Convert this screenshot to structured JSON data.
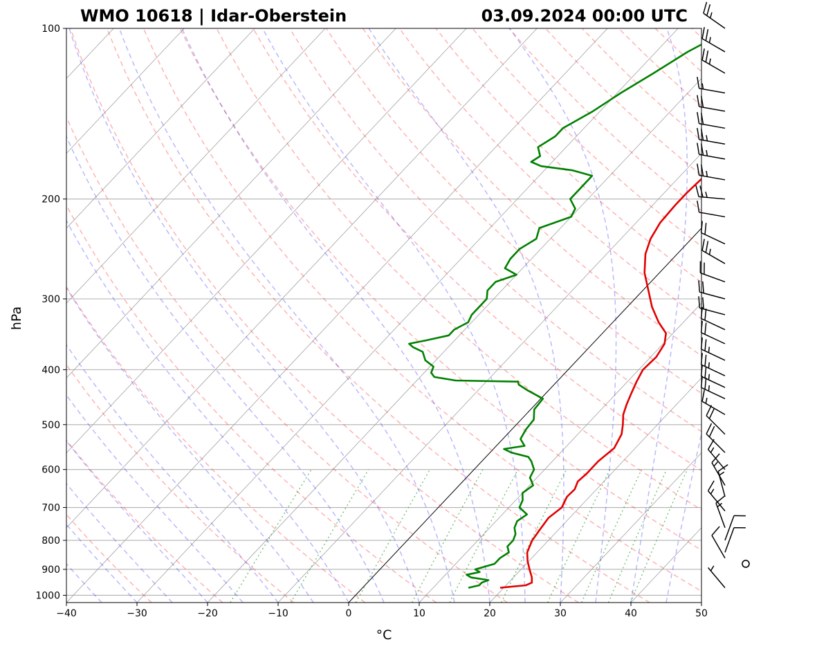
{
  "chart_data": {
    "type": "line",
    "title_left": "WMO 10618 | Idar-Oberstein",
    "title_right": "03.09.2024 00:00 UTC",
    "xlabel": "°C",
    "ylabel": "hPa",
    "xlim": [
      -40,
      50
    ],
    "ylim": [
      1030,
      100
    ],
    "x_ticks": [
      -40,
      -30,
      -20,
      -10,
      0,
      10,
      20,
      30,
      40,
      50
    ],
    "x_tick_labels": [
      "−40",
      "−30",
      "−20",
      "−10",
      "0",
      "10",
      "20",
      "30",
      "40",
      "50"
    ],
    "y_ticks": [
      1000,
      900,
      800,
      700,
      600,
      500,
      400,
      300,
      200,
      100
    ],
    "y_tick_labels": [
      "1000",
      "900",
      "800",
      "700",
      "600",
      "500",
      "400",
      "300",
      "200",
      "100"
    ],
    "isotherm_highlight": 0,
    "series": [
      {
        "name": "Temperature",
        "color": "#e00000",
        "points": [
          [
            970,
            19.5
          ],
          [
            960,
            22.8
          ],
          [
            950,
            23.3
          ],
          [
            930,
            22.6
          ],
          [
            900,
            21.2
          ],
          [
            870,
            19.8
          ],
          [
            840,
            18.6
          ],
          [
            800,
            17.7
          ],
          [
            760,
            17.3
          ],
          [
            730,
            17.0
          ],
          [
            700,
            17.5
          ],
          [
            670,
            16.8
          ],
          [
            650,
            16.9
          ],
          [
            630,
            16.3
          ],
          [
            610,
            16.5
          ],
          [
            580,
            16.5
          ],
          [
            550,
            17.0
          ],
          [
            520,
            16.2
          ],
          [
            500,
            15.1
          ],
          [
            480,
            13.8
          ],
          [
            460,
            12.9
          ],
          [
            440,
            12.1
          ],
          [
            420,
            11.3
          ],
          [
            400,
            10.6
          ],
          [
            380,
            10.8
          ],
          [
            360,
            10.2
          ],
          [
            345,
            9.0
          ],
          [
            330,
            6.5
          ],
          [
            310,
            3.5
          ],
          [
            290,
            0.8
          ],
          [
            270,
            -2.1
          ],
          [
            250,
            -4.5
          ],
          [
            235,
            -5.8
          ],
          [
            220,
            -6.6
          ],
          [
            205,
            -6.8
          ],
          [
            195,
            -6.8
          ],
          [
            185,
            -6.6
          ],
          [
            178,
            -6.0
          ],
          [
            174,
            -4.5
          ],
          [
            170,
            -3.0
          ],
          [
            165,
            -1.5
          ],
          [
            160,
            0.0
          ],
          [
            155,
            2.5
          ],
          [
            150,
            4.5
          ],
          [
            145,
            5.5
          ],
          [
            140,
            7.0
          ],
          [
            135,
            9.0
          ],
          [
            130,
            11.5
          ],
          [
            125,
            13.5
          ],
          [
            120,
            15.8
          ],
          [
            116,
            17.0
          ],
          [
            112,
            18.0
          ],
          [
            108,
            19.5
          ],
          [
            104,
            21.2
          ],
          [
            100,
            22.5
          ]
        ]
      },
      {
        "name": "Dewpoint",
        "color": "#008000",
        "points": [
          [
            970,
            15.0
          ],
          [
            960,
            16.2
          ],
          [
            950,
            16.2
          ],
          [
            940,
            16.8
          ],
          [
            930,
            14.0
          ],
          [
            920,
            13.0
          ],
          [
            910,
            14.5
          ],
          [
            900,
            13.5
          ],
          [
            880,
            15.5
          ],
          [
            860,
            15.5
          ],
          [
            840,
            16.0
          ],
          [
            820,
            15.0
          ],
          [
            800,
            15.0
          ],
          [
            780,
            14.5
          ],
          [
            760,
            13.5
          ],
          [
            740,
            13.0
          ],
          [
            720,
            13.5
          ],
          [
            700,
            11.5
          ],
          [
            680,
            11.0
          ],
          [
            660,
            10.0
          ],
          [
            640,
            10.5
          ],
          [
            620,
            9.0
          ],
          [
            600,
            8.5
          ],
          [
            580,
            7.0
          ],
          [
            570,
            6.0
          ],
          [
            560,
            3.0
          ],
          [
            552,
            1.5
          ],
          [
            545,
            4.0
          ],
          [
            530,
            2.5
          ],
          [
            510,
            2.0
          ],
          [
            490,
            1.8
          ],
          [
            470,
            0.5
          ],
          [
            450,
            0.3
          ],
          [
            435,
            -3.0
          ],
          [
            425,
            -5.0
          ],
          [
            420,
            -5.5
          ],
          [
            418,
            -14.5
          ],
          [
            412,
            -18.0
          ],
          [
            405,
            -19.0
          ],
          [
            395,
            -19.5
          ],
          [
            385,
            -21.5
          ],
          [
            372,
            -23.0
          ],
          [
            365,
            -25.0
          ],
          [
            360,
            -26.0
          ],
          [
            355,
            -24.0
          ],
          [
            348,
            -21.5
          ],
          [
            340,
            -21.5
          ],
          [
            330,
            -20.5
          ],
          [
            320,
            -21.0
          ],
          [
            310,
            -21.0
          ],
          [
            300,
            -21.0
          ],
          [
            290,
            -22.0
          ],
          [
            280,
            -22.0
          ],
          [
            272,
            -20.0
          ],
          [
            265,
            -22.5
          ],
          [
            255,
            -23.0
          ],
          [
            245,
            -23.0
          ],
          [
            235,
            -22.0
          ],
          [
            225,
            -23.0
          ],
          [
            215,
            -20.0
          ],
          [
            208,
            -20.5
          ],
          [
            200,
            -22.5
          ],
          [
            192,
            -22.5
          ],
          [
            182,
            -22.5
          ],
          [
            178,
            -26.0
          ],
          [
            175,
            -31.0
          ],
          [
            172,
            -33.0
          ],
          [
            168,
            -32.5
          ],
          [
            162,
            -34.0
          ],
          [
            155,
            -33.0
          ],
          [
            150,
            -33.0
          ],
          [
            140,
            -31.0
          ],
          [
            130,
            -29.5
          ],
          [
            120,
            -27.5
          ],
          [
            110,
            -25.5
          ],
          [
            105,
            -24.0
          ],
          [
            100,
            -22.5
          ]
        ]
      }
    ],
    "wind_barbs": [
      {
        "p": 970,
        "dir": 320,
        "kt": 5
      },
      {
        "p": 880,
        "dir": 150,
        "kt": 0
      },
      {
        "p": 860,
        "dir": 330,
        "kt": 10
      },
      {
        "p": 840,
        "dir": 20,
        "kt": 10
      },
      {
        "p": 800,
        "dir": 20,
        "kt": 10
      },
      {
        "p": 760,
        "dir": 340,
        "kt": 15
      },
      {
        "p": 710,
        "dir": 320,
        "kt": 15
      },
      {
        "p": 670,
        "dir": 345,
        "kt": 15
      },
      {
        "p": 640,
        "dir": 330,
        "kt": 15
      },
      {
        "p": 600,
        "dir": 320,
        "kt": 15
      },
      {
        "p": 560,
        "dir": 315,
        "kt": 20
      },
      {
        "p": 520,
        "dir": 315,
        "kt": 20
      },
      {
        "p": 480,
        "dir": 300,
        "kt": 15
      },
      {
        "p": 450,
        "dir": 295,
        "kt": 25
      },
      {
        "p": 430,
        "dir": 295,
        "kt": 25
      },
      {
        "p": 410,
        "dir": 295,
        "kt": 25
      },
      {
        "p": 385,
        "dir": 295,
        "kt": 25
      },
      {
        "p": 360,
        "dir": 295,
        "kt": 20
      },
      {
        "p": 340,
        "dir": 295,
        "kt": 20
      },
      {
        "p": 320,
        "dir": 285,
        "kt": 20
      },
      {
        "p": 300,
        "dir": 285,
        "kt": 20
      },
      {
        "p": 280,
        "dir": 290,
        "kt": 20
      },
      {
        "p": 260,
        "dir": 300,
        "kt": 25
      },
      {
        "p": 240,
        "dir": 295,
        "kt": 20
      },
      {
        "p": 215,
        "dir": 280,
        "kt": 10
      },
      {
        "p": 200,
        "dir": 275,
        "kt": 25
      },
      {
        "p": 185,
        "dir": 280,
        "kt": 25
      },
      {
        "p": 170,
        "dir": 280,
        "kt": 25
      },
      {
        "p": 160,
        "dir": 280,
        "kt": 25
      },
      {
        "p": 150,
        "dir": 280,
        "kt": 20
      },
      {
        "p": 140,
        "dir": 280,
        "kt": 20
      },
      {
        "p": 130,
        "dir": 280,
        "kt": 15
      },
      {
        "p": 120,
        "dir": 300,
        "kt": 25
      },
      {
        "p": 110,
        "dir": 300,
        "kt": 25
      },
      {
        "p": 100,
        "dir": 305,
        "kt": 25
      }
    ]
  }
}
